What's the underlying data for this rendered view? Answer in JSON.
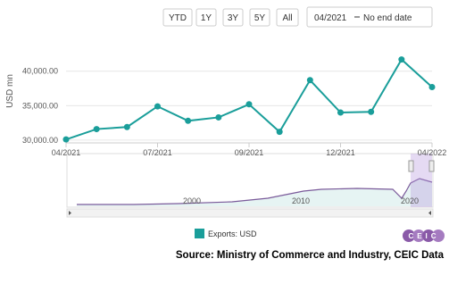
{
  "toolbar": {
    "buttons": [
      "YTD",
      "1Y",
      "3Y",
      "5Y",
      "All"
    ],
    "range_start": "04/2021",
    "range_end": "No end date"
  },
  "chart_data": {
    "type": "line",
    "y_label": "USD mn",
    "categories": [
      "04/2021",
      null,
      null,
      "07/2021",
      null,
      null,
      "09/2021",
      null,
      null,
      "12/2021",
      null,
      null,
      "04/2022"
    ],
    "series": [
      {
        "name": "Exports: USD",
        "color": "#1a9e9a",
        "values": [
          30100,
          31600,
          31900,
          34900,
          32800,
          33300,
          35200,
          31200,
          38700,
          34000,
          34100,
          41700,
          37700
        ]
      }
    ],
    "ylim": [
      29600,
      44500
    ],
    "yticks": [
      {
        "value": 30000,
        "label": "30,000.00"
      },
      {
        "value": 35000,
        "label": "35,000.00"
      },
      {
        "value": 40000,
        "label": "40,000.00"
      }
    ],
    "grid": true
  },
  "navigator": {
    "labels": [
      "2000",
      "2010",
      "2020"
    ]
  },
  "source": "Source: Ministry of Commerce and Industry, CEIC Data",
  "logo": "CEIC"
}
